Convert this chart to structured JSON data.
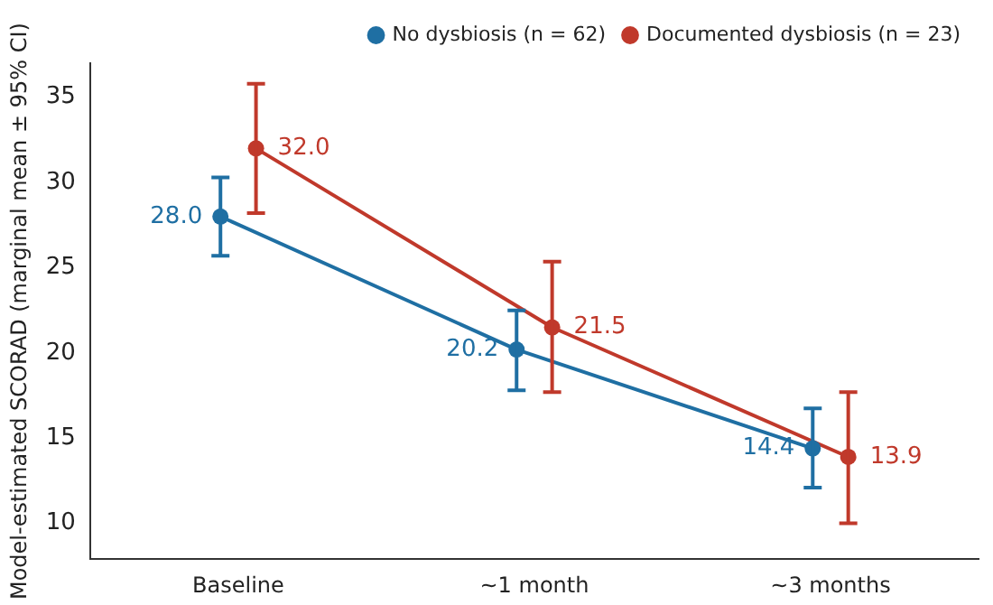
{
  "chart_data": {
    "type": "line",
    "ylabel": "Model-estimated SCORAD (marginal mean ± 95% CI)",
    "categories": [
      "Baseline",
      "~1 month",
      "~3 months"
    ],
    "series": [
      {
        "name": "No dysbiosis (n = 62)",
        "color": "#1f6fa3",
        "values": [
          28.0,
          20.2,
          14.4
        ],
        "value_labels": [
          "28.0",
          "20.2",
          "14.4"
        ],
        "errors": [
          [
            25.7,
            30.3
          ],
          [
            17.8,
            22.5
          ],
          [
            12.1,
            16.75
          ]
        ]
      },
      {
        "name": "Documented dysbiosis (n = 23)",
        "color": "#c0392b",
        "values": [
          32.0,
          21.5,
          13.9
        ],
        "value_labels": [
          "32.0",
          "21.5",
          "13.9"
        ],
        "errors": [
          [
            28.2,
            35.8
          ],
          [
            17.7,
            25.35
          ],
          [
            10.0,
            17.7
          ]
        ]
      }
    ],
    "ylim": [
      7.9,
      37
    ],
    "yticks": [
      10,
      15,
      20,
      25,
      30,
      35
    ],
    "grid": false,
    "legend": "top right",
    "marker": "circle",
    "line_style": "solid"
  }
}
